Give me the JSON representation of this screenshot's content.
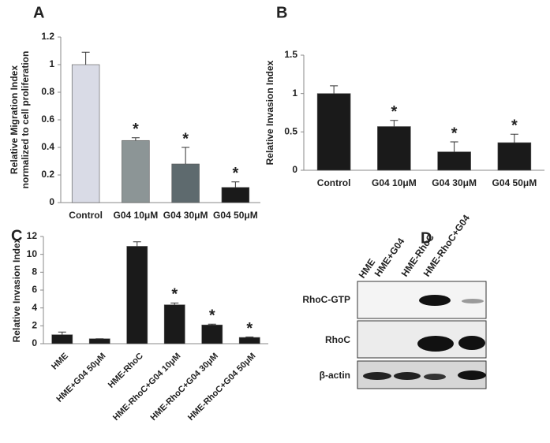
{
  "chart_data": [
    {
      "type": "bar",
      "panel": "A",
      "ylabel": [
        "Relative Migration Index",
        "normalized to cell proliferation"
      ],
      "categories": [
        "Control",
        "G04 10μM",
        "G04 30μM",
        "G04 50μM"
      ],
      "values": [
        1.0,
        0.45,
        0.28,
        0.11
      ],
      "errors": [
        0.09,
        0.02,
        0.12,
        0.04
      ],
      "significance": [
        null,
        "*",
        "*",
        "*"
      ],
      "colors": [
        "#d9dbe6",
        "#8c9596",
        "#5e6a6e",
        "#1a1a1a"
      ],
      "ylim": [
        0,
        1.2
      ],
      "yticks": [
        0,
        0.2,
        0.4,
        0.6,
        0.8,
        1,
        1.2
      ]
    },
    {
      "type": "bar",
      "panel": "B",
      "ylabel": [
        "Relative Invasion Index"
      ],
      "categories": [
        "Control",
        "G04 10μM",
        "G04 30μM",
        "G04 50μM"
      ],
      "values": [
        1.0,
        0.57,
        0.24,
        0.36
      ],
      "errors": [
        0.1,
        0.08,
        0.13,
        0.11
      ],
      "significance": [
        null,
        "*",
        "*",
        "*"
      ],
      "color": "#1a1a1a",
      "ylim": [
        0,
        1.5
      ],
      "yticks": [
        0,
        0.5,
        1,
        1.5
      ]
    },
    {
      "type": "bar",
      "panel": "C",
      "ylabel": [
        "Relative Invasion Index"
      ],
      "categories": [
        "HME",
        "HME+G04 50μM",
        "HME-RhoC",
        "HME-RhoC+G04 10μM",
        "HME-RhoC+G04 30μM",
        "HME-RhoC+G04 50μM"
      ],
      "values": [
        1.0,
        0.55,
        10.9,
        4.35,
        2.1,
        0.7
      ],
      "errors": [
        0.3,
        0,
        0.5,
        0.2,
        0.08,
        0.05
      ],
      "significance": [
        null,
        null,
        null,
        "*",
        "*",
        "*"
      ],
      "color": "#1a1a1a",
      "ylim": [
        0,
        12
      ],
      "yticks": [
        0,
        2,
        4,
        6,
        8,
        10,
        12
      ]
    }
  ],
  "blot": {
    "panel": "D",
    "lanes": [
      "HME",
      "HME+G04",
      "HME-RhoC",
      "HME-RhoC+G04"
    ],
    "rows": [
      "RhoC-GTP",
      "RhoC",
      "β-actin"
    ]
  }
}
